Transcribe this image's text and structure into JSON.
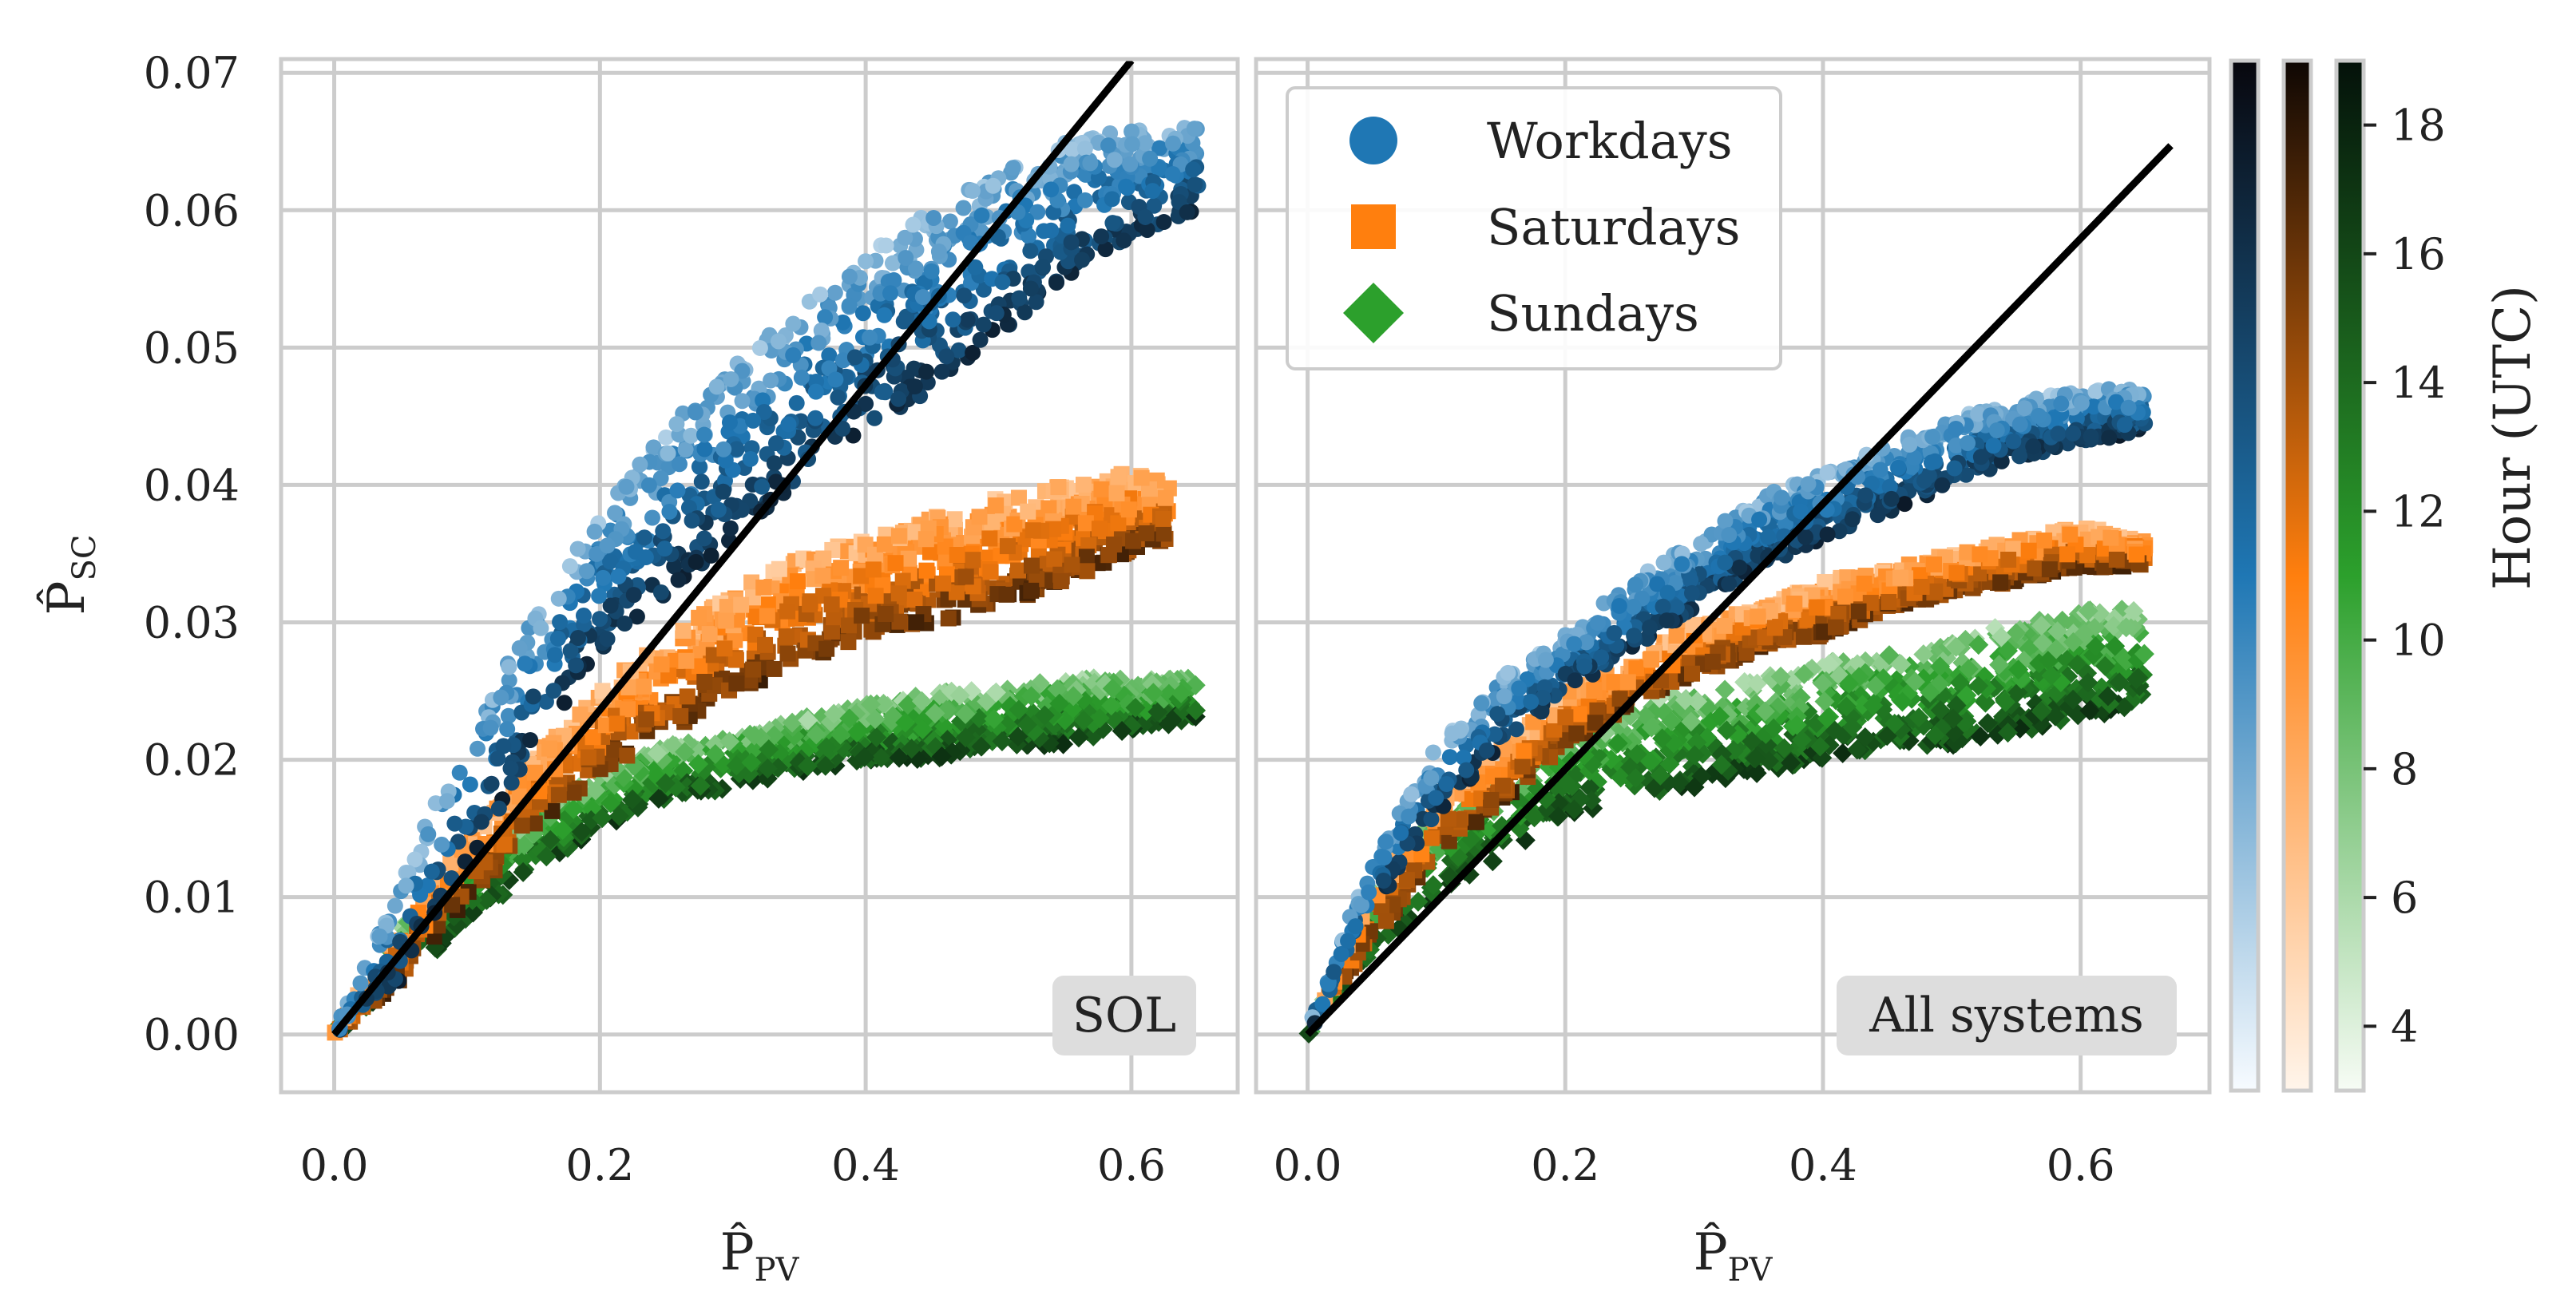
{
  "figure": {
    "shared_ylabel": {
      "base": "P̂",
      "sub": "SC"
    },
    "colorbar": {
      "label": "Hour (UTC)",
      "range": [
        3,
        19
      ],
      "ticks": [
        "4",
        "6",
        "8",
        "10",
        "12",
        "14",
        "16",
        "18"
      ],
      "cmaps": [
        {
          "series": "Workdays",
          "light": "#f7fbff",
          "mid": "#1f77b4",
          "dark": "#08070d"
        },
        {
          "series": "Saturdays",
          "light": "#fff5eb",
          "mid": "#ff7f0e",
          "dark": "#0e0704"
        },
        {
          "series": "Sundays",
          "light": "#f7fcf5",
          "mid": "#2ca02c",
          "dark": "#04110a"
        }
      ]
    },
    "legend": {
      "placement": "top-left of right panel",
      "items": [
        {
          "label": "Workdays",
          "marker": "circle",
          "color": "#1f77b4"
        },
        {
          "label": "Saturdays",
          "marker": "square",
          "color": "#ff7f0e"
        },
        {
          "label": "Sundays",
          "marker": "diamond",
          "color": "#2ca02c"
        }
      ]
    }
  },
  "chart_data": [
    {
      "type": "scatter",
      "panel_label": "SOL",
      "xlabel": {
        "base": "P̂",
        "sub": "PV"
      },
      "xlim": [
        -0.04,
        0.68
      ],
      "ylim": [
        -0.0042,
        0.071
      ],
      "xticks": [
        "0.0",
        "0.2",
        "0.4",
        "0.6"
      ],
      "yticks": [
        "0.00",
        "0.01",
        "0.02",
        "0.03",
        "0.04",
        "0.05",
        "0.06",
        "0.07"
      ],
      "grid": true,
      "reference_line": {
        "color": "#000000",
        "x": [
          0.0,
          0.6
        ],
        "y": [
          0.0,
          0.0709
        ]
      },
      "series": [
        {
          "name": "Workdays",
          "marker": "circle",
          "envelope": {
            "x": [
              0.0,
              0.05,
              0.1,
              0.15,
              0.2,
              0.25,
              0.3,
              0.35,
              0.4,
              0.45,
              0.5,
              0.55,
              0.6,
              0.65
            ],
            "y_low": [
              0.0,
              0.004,
              0.012,
              0.021,
              0.028,
              0.032,
              0.036,
              0.04,
              0.044,
              0.047,
              0.051,
              0.055,
              0.058,
              0.06
            ],
            "y_high": [
              0.0,
              0.011,
              0.022,
              0.031,
              0.038,
              0.044,
              0.049,
              0.053,
              0.057,
              0.06,
              0.063,
              0.065,
              0.066,
              0.066
            ]
          }
        },
        {
          "name": "Saturdays",
          "marker": "square",
          "envelope": {
            "x": [
              0.0,
              0.05,
              0.1,
              0.15,
              0.2,
              0.25,
              0.3,
              0.35,
              0.4,
              0.45,
              0.5,
              0.55,
              0.6,
              0.63
            ],
            "y_low": [
              0.0,
              0.004,
              0.01,
              0.015,
              0.019,
              0.022,
              0.025,
              0.027,
              0.029,
              0.03,
              0.031,
              0.033,
              0.035,
              0.036
            ],
            "y_high": [
              0.0,
              0.008,
              0.014,
              0.02,
              0.025,
              0.029,
              0.032,
              0.035,
              0.036,
              0.038,
              0.039,
              0.04,
              0.041,
              0.04
            ]
          }
        },
        {
          "name": "Sundays",
          "marker": "diamond",
          "envelope": {
            "x": [
              0.0,
              0.05,
              0.1,
              0.15,
              0.2,
              0.25,
              0.3,
              0.35,
              0.4,
              0.45,
              0.5,
              0.55,
              0.6,
              0.65
            ],
            "y_low": [
              0.0,
              0.004,
              0.008,
              0.012,
              0.015,
              0.017,
              0.018,
              0.019,
              0.02,
              0.02,
              0.021,
              0.021,
              0.022,
              0.023
            ],
            "y_high": [
              0.0,
              0.008,
              0.013,
              0.016,
              0.019,
              0.021,
              0.022,
              0.023,
              0.024,
              0.025,
              0.025,
              0.026,
              0.026,
              0.026
            ]
          }
        }
      ]
    },
    {
      "type": "scatter",
      "panel_label": "All systems",
      "xlabel": {
        "base": "P̂",
        "sub": "PV"
      },
      "xlim": [
        -0.04,
        0.7
      ],
      "ylim": [
        -0.0042,
        0.071
      ],
      "xticks": [
        "0.0",
        "0.2",
        "0.4",
        "0.6"
      ],
      "grid": true,
      "reference_line": {
        "color": "#000000",
        "x": [
          0.0,
          0.67
        ],
        "y": [
          0.0,
          0.0647
        ]
      },
      "series": [
        {
          "name": "Workdays",
          "marker": "circle",
          "envelope": {
            "x": [
              0.0,
              0.05,
              0.1,
              0.15,
              0.2,
              0.25,
              0.3,
              0.35,
              0.4,
              0.45,
              0.5,
              0.55,
              0.6,
              0.65
            ],
            "y_low": [
              0.0,
              0.009,
              0.016,
              0.021,
              0.025,
              0.028,
              0.031,
              0.034,
              0.036,
              0.038,
              0.04,
              0.042,
              0.043,
              0.044
            ],
            "y_high": [
              0.0,
              0.013,
              0.021,
              0.026,
              0.029,
              0.033,
              0.036,
              0.039,
              0.041,
              0.043,
              0.045,
              0.046,
              0.047,
              0.047
            ]
          }
        },
        {
          "name": "Saturdays",
          "marker": "square",
          "envelope": {
            "x": [
              0.0,
              0.05,
              0.1,
              0.15,
              0.2,
              0.25,
              0.3,
              0.35,
              0.4,
              0.45,
              0.5,
              0.55,
              0.6,
              0.65
            ],
            "y_low": [
              0.0,
              0.007,
              0.013,
              0.017,
              0.021,
              0.024,
              0.026,
              0.028,
              0.029,
              0.031,
              0.032,
              0.033,
              0.034,
              0.034
            ],
            "y_high": [
              0.0,
              0.011,
              0.017,
              0.021,
              0.025,
              0.027,
              0.03,
              0.031,
              0.033,
              0.034,
              0.035,
              0.036,
              0.037,
              0.036
            ]
          }
        },
        {
          "name": "Sundays",
          "marker": "diamond",
          "envelope": {
            "x": [
              0.0,
              0.05,
              0.1,
              0.15,
              0.2,
              0.25,
              0.3,
              0.35,
              0.4,
              0.45,
              0.5,
              0.55,
              0.6,
              0.65
            ],
            "y_low": [
              0.0,
              0.006,
              0.01,
              0.013,
              0.016,
              0.017,
              0.018,
              0.019,
              0.02,
              0.021,
              0.021,
              0.022,
              0.023,
              0.024
            ],
            "y_high": [
              0.0,
              0.01,
              0.016,
              0.019,
              0.022,
              0.024,
              0.025,
              0.026,
              0.027,
              0.028,
              0.029,
              0.03,
              0.031,
              0.031
            ]
          }
        }
      ]
    }
  ]
}
